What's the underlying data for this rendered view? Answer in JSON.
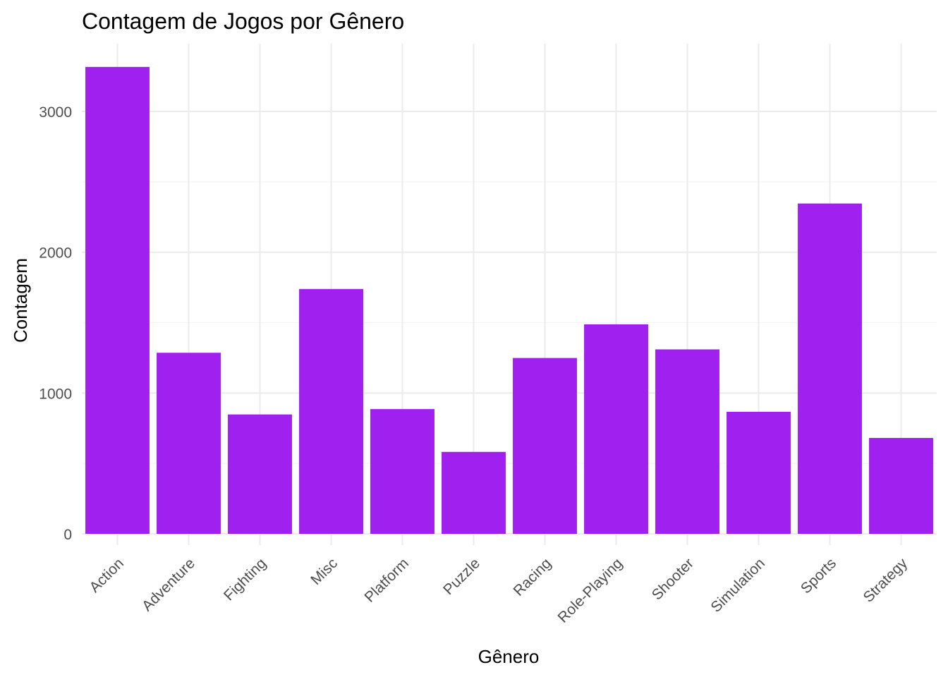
{
  "chart_data": {
    "type": "bar",
    "title": "Contagem de Jogos por Gênero",
    "xlabel": "Gênero",
    "ylabel": "Contagem",
    "categories": [
      "Action",
      "Adventure",
      "Fighting",
      "Misc",
      "Platform",
      "Puzzle",
      "Racing",
      "Role-Playing",
      "Shooter",
      "Simulation",
      "Sports",
      "Strategy"
    ],
    "values": [
      3316,
      1286,
      848,
      1739,
      886,
      582,
      1249,
      1488,
      1310,
      867,
      2346,
      681
    ],
    "ylim": [
      0,
      3480
    ],
    "yticks": [
      0,
      1000,
      2000,
      3000
    ],
    "grid": true,
    "bar_color": "#A020F0"
  }
}
